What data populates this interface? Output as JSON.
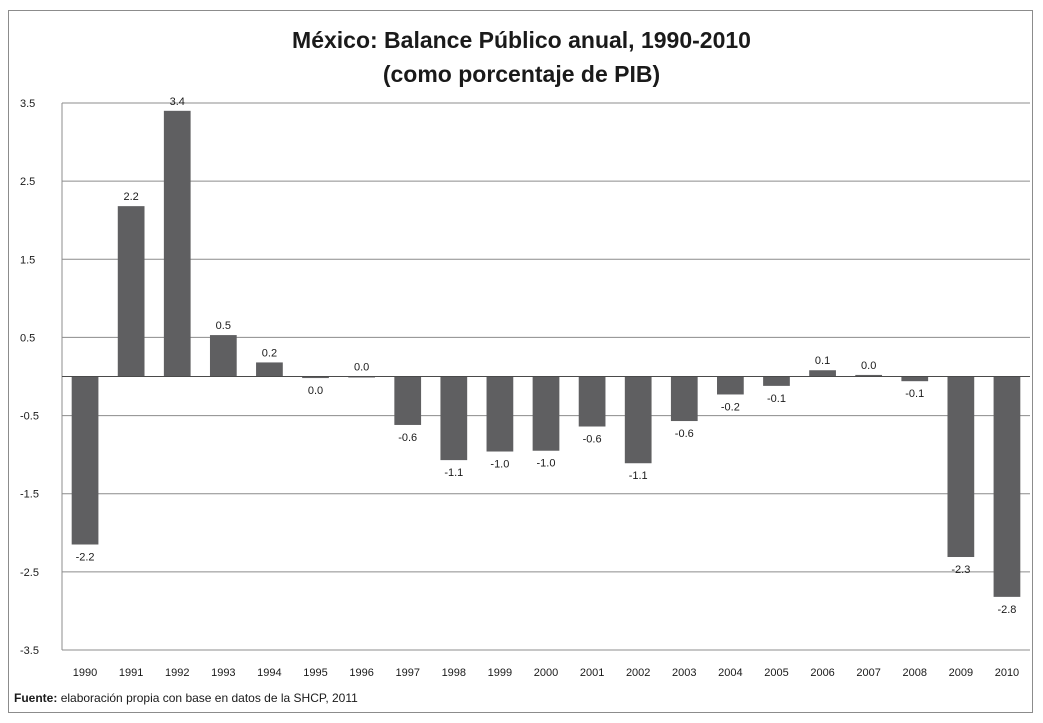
{
  "chart_data": {
    "type": "bar",
    "title": "México: Balance Público anual, 1990-2010",
    "subtitle": "(como porcentaje de PIB)",
    "xlabel": "",
    "ylabel": "",
    "ylim": [
      -3.5,
      3.5
    ],
    "yticks": [
      3.5,
      2.5,
      1.5,
      0.5,
      -0.5,
      -1.5,
      -2.5,
      -3.5
    ],
    "ytick_labels": [
      "3.5",
      "2.5",
      "1.5",
      "0.5",
      "-0.5",
      "-1.5",
      "-2.5",
      "-3.5"
    ],
    "grid": true,
    "legend": "none",
    "bar_color": "#5f5f61",
    "categories": [
      "1990",
      "1991",
      "1992",
      "1993",
      "1994",
      "1995",
      "1996",
      "1997",
      "1998",
      "1999",
      "2000",
      "2001",
      "2002",
      "2003",
      "2004",
      "2005",
      "2006",
      "2007",
      "2008",
      "2009",
      "2010"
    ],
    "values": [
      -2.15,
      2.18,
      3.4,
      0.53,
      0.18,
      -0.02,
      0.0,
      -0.62,
      -1.07,
      -0.96,
      -0.95,
      -0.64,
      -1.11,
      -0.57,
      -0.23,
      -0.12,
      0.08,
      0.02,
      -0.06,
      -2.31,
      -2.82
    ],
    "data_labels": [
      "-2.2",
      "2.2",
      "3.4",
      "0.5",
      "0.2",
      "0.0",
      "0.0",
      "-0.6",
      "-1.1",
      "-1.0",
      "-1.0",
      "-0.6",
      "-1.1",
      "-0.6",
      "-0.2",
      "-0.1",
      "0.1",
      "0.0",
      "-0.1",
      "-2.3",
      "-2.8"
    ]
  },
  "source": {
    "label": "Fuente:",
    "text": "elaboración propia con base en datos de la SHCP, 2011"
  }
}
